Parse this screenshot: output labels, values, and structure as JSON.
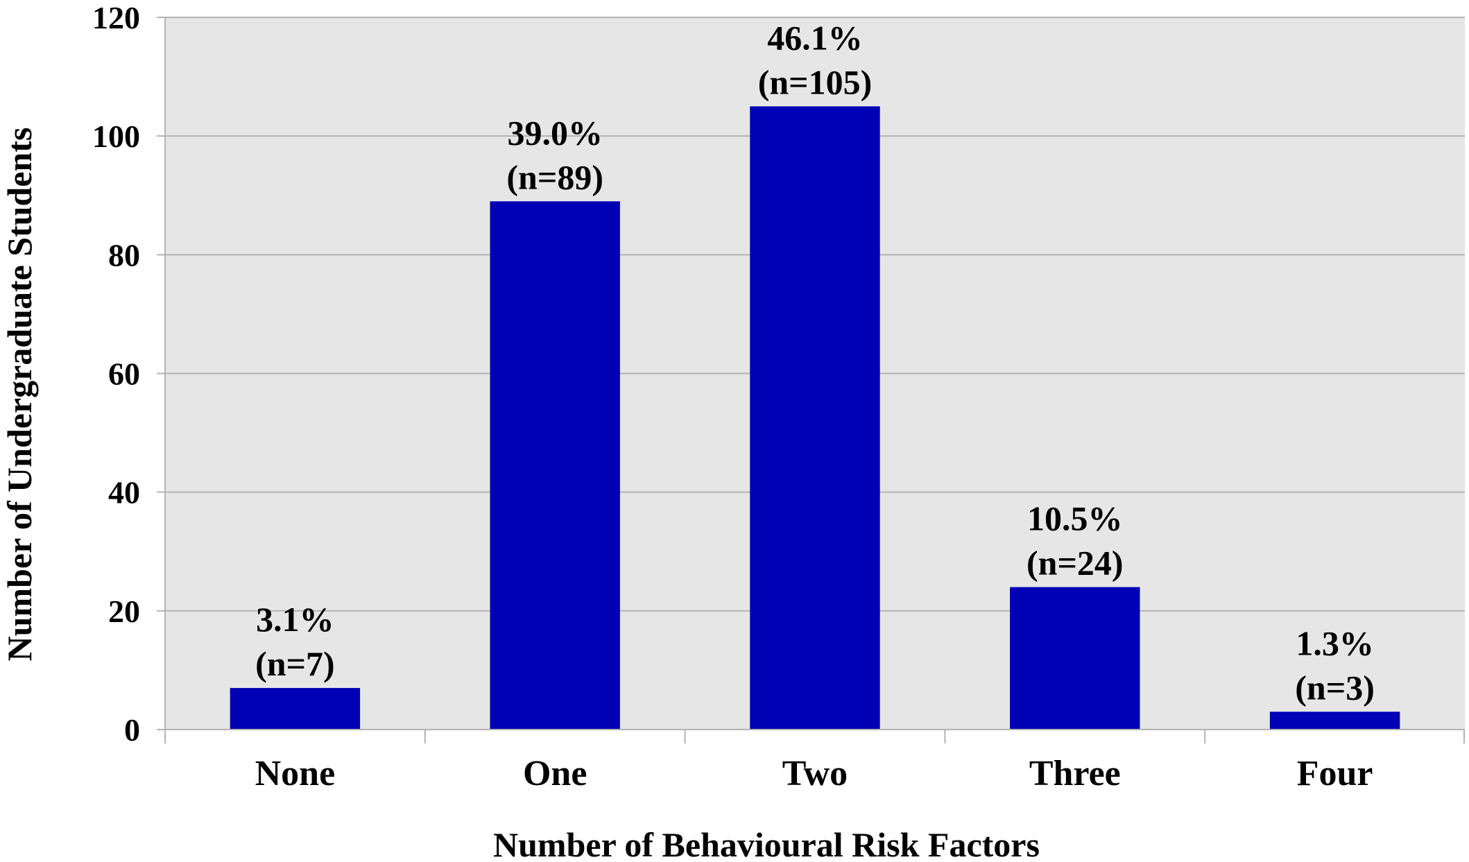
{
  "chart_data": {
    "type": "bar",
    "title": "",
    "xlabel": "Number of Behavioural Risk Factors",
    "ylabel": "Number of Undergraduate Students",
    "categories": [
      "None",
      "One",
      "Two",
      "Three",
      "Four"
    ],
    "values": [
      7,
      89,
      105,
      24,
      3
    ],
    "data_labels": [
      {
        "percent": "3.1%",
        "count": "(n=7)"
      },
      {
        "percent": "39.0%",
        "count": "(n=89)"
      },
      {
        "percent": "46.1%",
        "count": "(n=105)"
      },
      {
        "percent": "10.5%",
        "count": "(n=24)"
      },
      {
        "percent": "1.3%",
        "count": "(n=3)"
      }
    ],
    "ylim": [
      0,
      120
    ],
    "yticks": [
      0,
      20,
      40,
      60,
      80,
      100,
      120
    ],
    "grid": true,
    "legend": "none",
    "colors": {
      "bar": "#0000b4",
      "plot_background": "#e6e6e6",
      "grid": "#b3b3b3",
      "axis": "#b3b3b3"
    }
  }
}
